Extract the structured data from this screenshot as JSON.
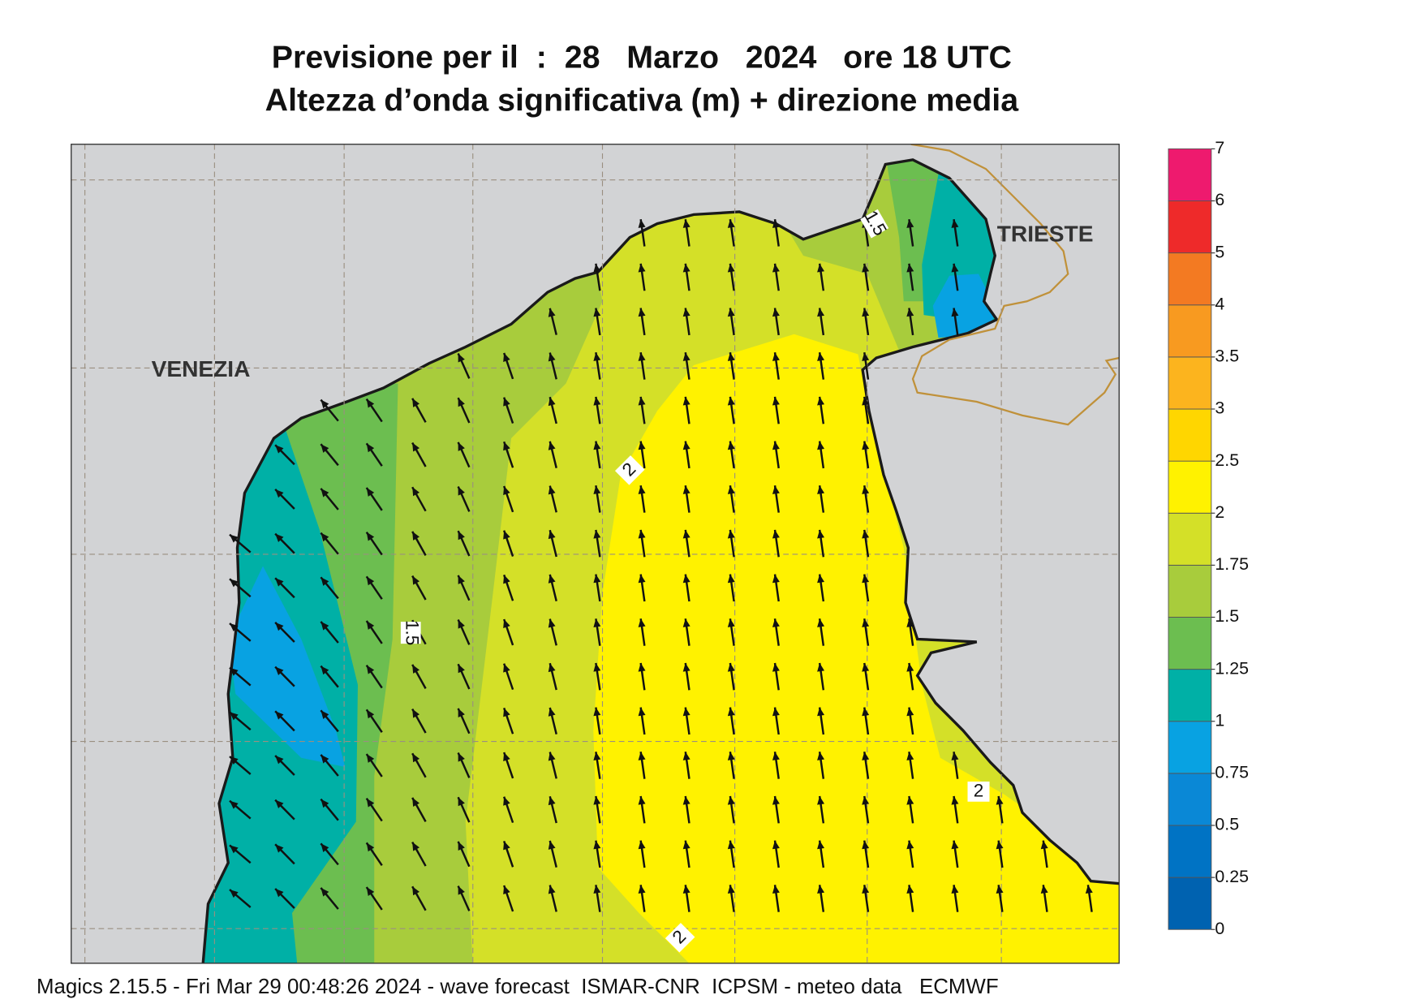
{
  "header": {
    "title": "Previsione per il  :  28   Marzo   2024   ore 18 UTC",
    "subtitle": "Altezza d’onda significativa (m) + direzione media"
  },
  "map": {
    "places": [
      "VENEZIA",
      "TRIESTE"
    ],
    "contour_labels": [
      "1.5",
      "2",
      "1.5",
      "2",
      "2"
    ]
  },
  "colorbar": {
    "levels": [
      0,
      0.25,
      0.5,
      0.75,
      1,
      1.25,
      1.5,
      1.75,
      2,
      2.5,
      3,
      3.5,
      4,
      5,
      6,
      7
    ],
    "colors": [
      "#0062b0",
      "#0073c4",
      "#0a88d6",
      "#08a2e2",
      "#00b0a6",
      "#6cbe50",
      "#a8cc3c",
      "#d4e028",
      "#fff200",
      "#ffd600",
      "#fcb41e",
      "#f89a20",
      "#f37a22",
      "#ee2a2a",
      "#ee1a6e"
    ]
  },
  "footer": "Magics 2.15.5 - Fri Mar 29 00:48:26 2024 - wave forecast  ISMAR-CNR  ICPSM - meteo data   ECMWF"
}
